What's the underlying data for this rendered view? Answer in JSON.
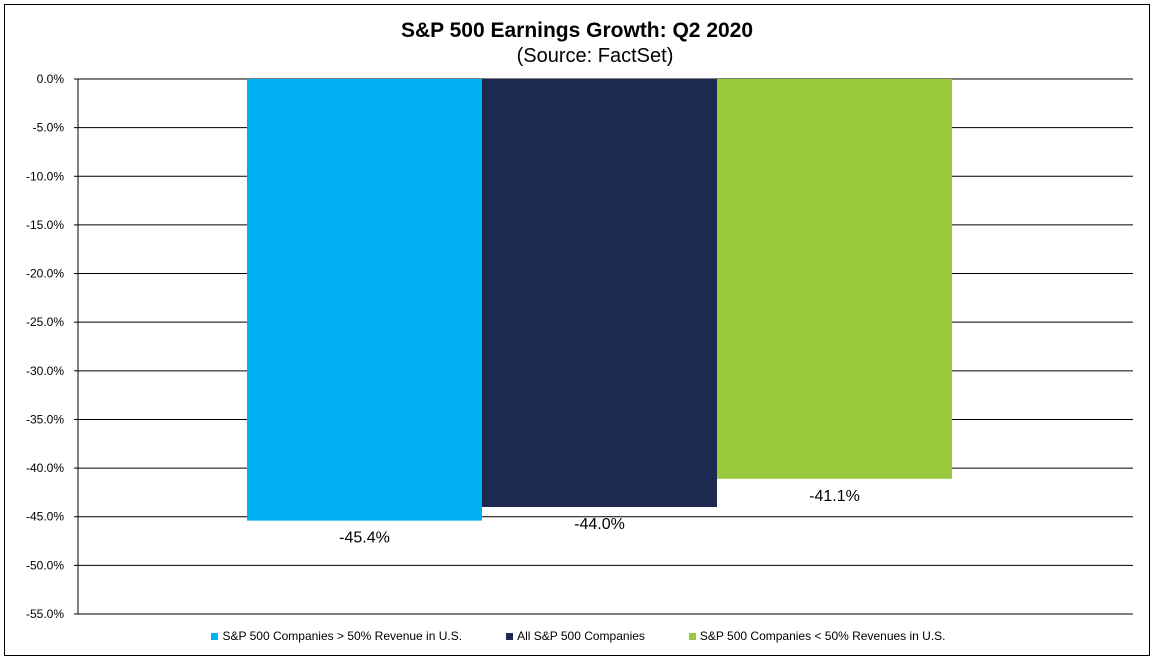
{
  "chart_data": {
    "type": "bar",
    "title": "S&P 500 Earnings Growth: Q2 2020",
    "subtitle": "(Source: FactSet)",
    "categories": [
      "S&P 500 Companies > 50% Revenue in U.S.",
      "All S&P 500 Companies",
      "S&P 500 Companies < 50% Revenues in U.S."
    ],
    "values": [
      -45.4,
      -44.0,
      -41.1
    ],
    "data_labels": [
      "-45.4%",
      "-44.0%",
      "-41.1%"
    ],
    "colors": [
      "#00B0F0",
      "#1C2A52",
      "#9ACA3C"
    ],
    "ylim": [
      -55.0,
      0.0
    ],
    "y_ticks": [
      0.0,
      -5.0,
      -10.0,
      -15.0,
      -20.0,
      -25.0,
      -30.0,
      -35.0,
      -40.0,
      -45.0,
      -50.0,
      -55.0
    ],
    "y_tick_labels": [
      "0.0%",
      "-5.0%",
      "-10.0%",
      "-15.0%",
      "-20.0%",
      "-25.0%",
      "-30.0%",
      "-35.0%",
      "-40.0%",
      "-45.0%",
      "-50.0%",
      "-55.0%"
    ],
    "grid": true,
    "legend": "bottom"
  }
}
